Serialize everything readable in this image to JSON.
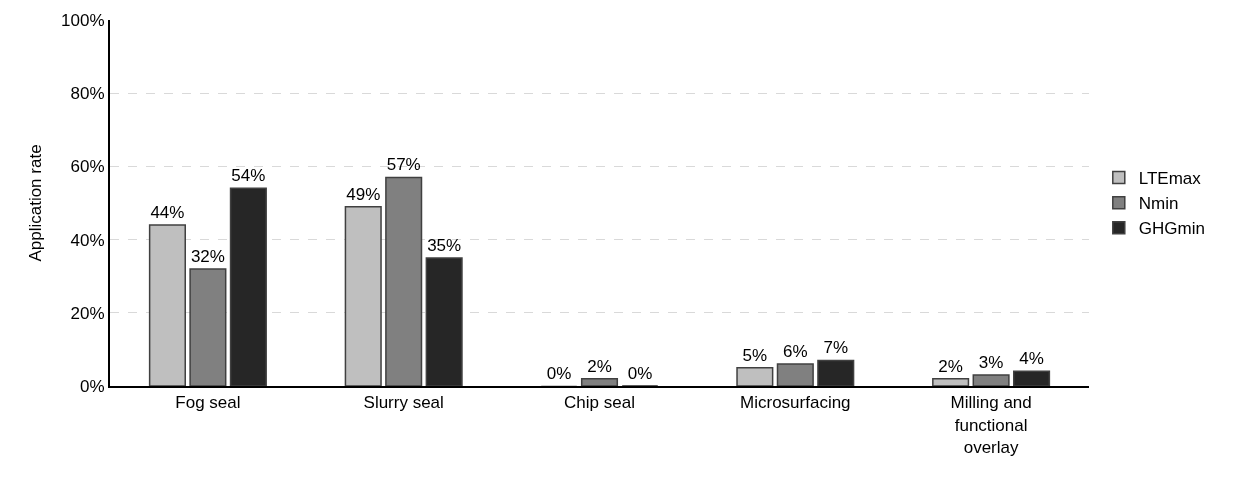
{
  "chart_data": {
    "type": "bar",
    "ylabel": "Application rate",
    "categories": [
      "Fog seal",
      "Slurry seal",
      "Chip seal",
      "Microsurfacing",
      "Milling and functional overlay"
    ],
    "series": [
      {
        "name": "LTEmax",
        "color": "#bfbfbf",
        "values": [
          44,
          49,
          0,
          5,
          2
        ],
        "value_labels": [
          "44%",
          "49%",
          "0%",
          "5%",
          "2%"
        ]
      },
      {
        "name": "Nmin",
        "color": "#808080",
        "values": [
          32,
          57,
          2,
          6,
          3
        ],
        "value_labels": [
          "32%",
          "57%",
          "2%",
          "6%",
          "3%"
        ]
      },
      {
        "name": "GHGmin",
        "color": "#262626",
        "values": [
          54,
          35,
          0,
          7,
          4
        ],
        "value_labels": [
          "54%",
          "35%",
          "0%",
          "7%",
          "4%"
        ]
      }
    ],
    "ylim": [
      0,
      100
    ],
    "yticks": [
      {
        "value": 0,
        "label": "0%"
      },
      {
        "value": 20,
        "label": "20%"
      },
      {
        "value": 40,
        "label": "40%"
      },
      {
        "value": 60,
        "label": "60%"
      },
      {
        "value": 80,
        "label": "80%"
      },
      {
        "value": 100,
        "label": "100%"
      }
    ],
    "grid": "y",
    "legend": "right"
  }
}
